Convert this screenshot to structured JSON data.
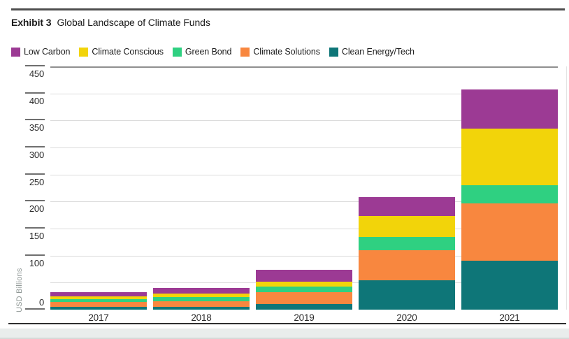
{
  "header": {
    "exhibit_label": "Exhibit 3",
    "title": "Global Landscape of Climate Funds"
  },
  "chart_data": {
    "type": "bar",
    "stacked": true,
    "title": "Global Landscape of Climate Funds",
    "categories": [
      "2017",
      "2018",
      "2019",
      "2020",
      "2021"
    ],
    "series": [
      {
        "name": "Low Carbon",
        "color": "#9c3a94",
        "values": [
          8,
          10,
          22,
          35,
          72
        ]
      },
      {
        "name": "Climate Conscious",
        "color": "#f2d40a",
        "values": [
          5,
          7,
          9,
          39,
          105
        ]
      },
      {
        "name": "Green Bond",
        "color": "#2fd081",
        "values": [
          5,
          8,
          11,
          24,
          33
        ]
      },
      {
        "name": "Climate Solutions",
        "color": "#f8873f",
        "values": [
          9,
          10,
          22,
          56,
          107
        ]
      },
      {
        "name": "Clean Energy/Tech",
        "color": "#0e7678",
        "values": [
          5,
          5,
          10,
          54,
          90
        ]
      }
    ],
    "stack_order_bottom_to_top": [
      "Clean Energy/Tech",
      "Climate Solutions",
      "Green Bond",
      "Climate Conscious",
      "Low Carbon"
    ],
    "totals": [
      32,
      40,
      74,
      208,
      407
    ],
    "xlabel": "",
    "ylabel": "USD Billions",
    "ylim": [
      0,
      450
    ],
    "y_gridline_step": 50,
    "y_tick_labels": [
      450,
      400,
      350,
      300,
      250,
      200,
      150,
      100,
      0
    ],
    "grid": true,
    "legend_position": "top-left"
  }
}
